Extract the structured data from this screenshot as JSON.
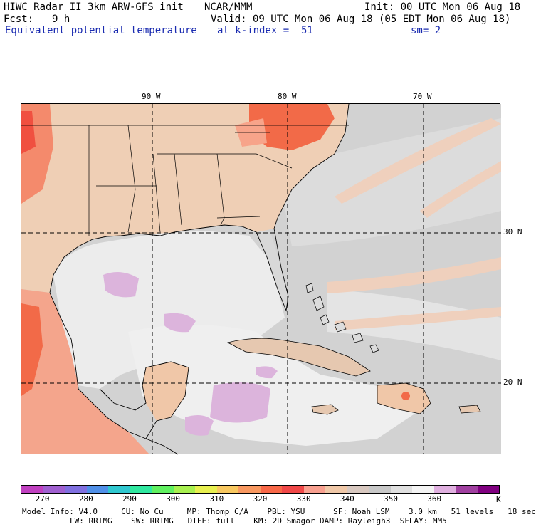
{
  "header": {
    "title": "HIWC Radar II 3km ARW-GFS init",
    "org": "NCAR/MMM",
    "init": "Init: 00 UTC Mon 06 Aug 18",
    "fcst_label": "Fcst:",
    "fcst_value": "9 h",
    "valid": "Valid: 09 UTC Mon 06 Aug 18 (05 EDT Mon 06 Aug 18)",
    "field": "Equivalent potential temperature",
    "level": "at k-index =  51",
    "smooth": "sm= 2"
  },
  "map": {
    "lon_labels": [
      "90 W",
      "80 W",
      "70 W"
    ],
    "lat_labels": [
      "30 N",
      "20 N"
    ]
  },
  "legend": {
    "colors": [
      "#c040c0",
      "#a060d0",
      "#8070e0",
      "#5090e8",
      "#30c8d0",
      "#30e8a0",
      "#60f060",
      "#a8f050",
      "#e8f050",
      "#f8c860",
      "#f89860",
      "#f86848",
      "#f04848",
      "#f8a090",
      "#f0c8a8",
      "#d8c8c0",
      "#c8c8c8",
      "#e0e0e0",
      "#f4f4f4",
      "#e0b0e0",
      "#a040a0",
      "#800080"
    ],
    "ticks": [
      "270",
      "280",
      "290",
      "300",
      "310",
      "320",
      "330",
      "340",
      "350",
      "360"
    ],
    "unit": "K"
  },
  "footer": {
    "line1": "Model Info: V4.0     CU: No Cu     MP: Thomp C/A    PBL: YSU      SF: Noah LSM    3.0 km   51 levels   18 sec",
    "line2": "LW: RRTMG    SW: RRTMG   DIFF: full    KM: 2D Smagor DAMP: Rayleigh3  SFLAY: MM5"
  }
}
